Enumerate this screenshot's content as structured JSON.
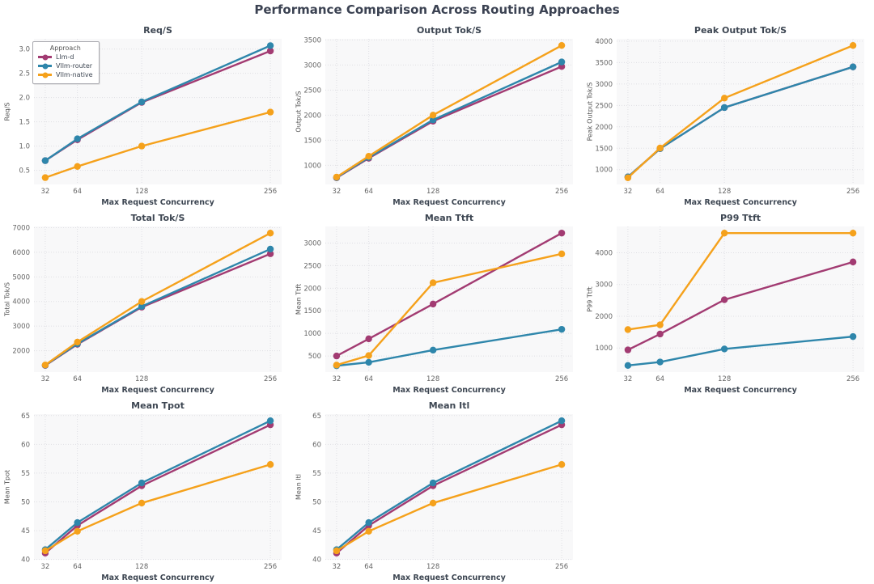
{
  "figure": {
    "title": "Performance Comparison Across Routing Approaches"
  },
  "legend": {
    "title": "Approach",
    "items": [
      {
        "label": "Llm-d",
        "color": "#A23B72"
      },
      {
        "label": "Vllm-router",
        "color": "#2E86AB"
      },
      {
        "label": "Vllm-native",
        "color": "#F5A11B"
      }
    ]
  },
  "colors": {
    "plot_bg": "#f8f8f9",
    "grid": "#dfdfe4",
    "tick_text": "#666666",
    "title_text": "#3d4652"
  },
  "chart_data": [
    {
      "type": "line",
      "title": "Req/S",
      "xlabel": "Max Request Concurrency",
      "ylabel": "Req/S",
      "x": [
        32,
        64,
        128,
        256
      ],
      "x_tick_labels": [
        "32",
        "64",
        "128",
        "256"
      ],
      "y_ticks": [
        0.5,
        1.0,
        1.5,
        2.0,
        2.5,
        3.0
      ],
      "y_tick_labels": [
        "0.5",
        "1.0",
        "1.5",
        "2.0",
        "2.5",
        "3.0"
      ],
      "ylim": [
        0.21,
        3.21
      ],
      "series": [
        {
          "name": "Llm-d",
          "color": "#A23B72",
          "values": [
            0.7,
            1.13,
            1.9,
            2.96
          ]
        },
        {
          "name": "Vllm-router",
          "color": "#2E86AB",
          "values": [
            0.7,
            1.15,
            1.91,
            3.07
          ]
        },
        {
          "name": "Vllm-native",
          "color": "#F5A11B",
          "values": [
            0.35,
            0.58,
            1.0,
            1.7
          ]
        }
      ]
    },
    {
      "type": "line",
      "title": "Output Tok/S",
      "xlabel": "Max Request Concurrency",
      "ylabel": "Output Tok/S",
      "x": [
        32,
        64,
        128,
        256
      ],
      "x_tick_labels": [
        "32",
        "64",
        "128",
        "256"
      ],
      "y_ticks": [
        1000,
        1500,
        2000,
        2500,
        3000,
        3500
      ],
      "y_tick_labels": [
        "1000",
        "1500",
        "2000",
        "2500",
        "3000",
        "3500"
      ],
      "ylim": [
        618,
        3522
      ],
      "series": [
        {
          "name": "Llm-d",
          "color": "#A23B72",
          "values": [
            750,
            1140,
            1880,
            2970
          ]
        },
        {
          "name": "Vllm-router",
          "color": "#2E86AB",
          "values": [
            755,
            1155,
            1905,
            3060
          ]
        },
        {
          "name": "Vllm-native",
          "color": "#F5A11B",
          "values": [
            765,
            1180,
            2000,
            3390
          ]
        }
      ]
    },
    {
      "type": "line",
      "title": "Peak Output Tok/S",
      "xlabel": "Max Request Concurrency",
      "ylabel": "Peak Output Tok/S",
      "x": [
        32,
        64,
        128,
        256
      ],
      "x_tick_labels": [
        "32",
        "64",
        "128",
        "256"
      ],
      "y_ticks": [
        1000,
        1500,
        2000,
        2500,
        3000,
        3500,
        4000
      ],
      "y_tick_labels": [
        "1000",
        "1500",
        "2000",
        "2500",
        "3000",
        "3500",
        "4000"
      ],
      "ylim": [
        655,
        4055
      ],
      "series": [
        {
          "name": "Llm-d",
          "color": "#A23B72",
          "values": [
            830,
            1490,
            2450,
            3400
          ]
        },
        {
          "name": "Vllm-router",
          "color": "#2E86AB",
          "values": [
            830,
            1490,
            2450,
            3400
          ]
        },
        {
          "name": "Vllm-native",
          "color": "#F5A11B",
          "values": [
            810,
            1505,
            2670,
            3900
          ]
        }
      ]
    },
    {
      "type": "line",
      "title": "Total Tok/S",
      "xlabel": "Max Request Concurrency",
      "ylabel": "Total Tok/S",
      "x": [
        32,
        64,
        128,
        256
      ],
      "x_tick_labels": [
        "32",
        "64",
        "128",
        "256"
      ],
      "y_ticks": [
        2000,
        3000,
        4000,
        5000,
        6000,
        7000
      ],
      "y_tick_labels": [
        "2000",
        "3000",
        "4000",
        "5000",
        "6000",
        "7000"
      ],
      "ylim": [
        1131,
        7049
      ],
      "series": [
        {
          "name": "Llm-d",
          "color": "#A23B72",
          "values": [
            1400,
            2260,
            3770,
            5940
          ]
        },
        {
          "name": "Vllm-router",
          "color": "#2E86AB",
          "values": [
            1410,
            2280,
            3800,
            6130
          ]
        },
        {
          "name": "Vllm-native",
          "color": "#F5A11B",
          "values": [
            1420,
            2350,
            4000,
            6780
          ]
        }
      ]
    },
    {
      "type": "line",
      "title": "Mean Ttft",
      "xlabel": "Max Request Concurrency",
      "ylabel": "Mean Ttft",
      "x": [
        32,
        64,
        128,
        256
      ],
      "x_tick_labels": [
        "32",
        "64",
        "128",
        "256"
      ],
      "y_ticks": [
        500,
        1000,
        1500,
        2000,
        2500,
        3000
      ],
      "y_tick_labels": [
        "500",
        "1000",
        "1500",
        "2000",
        "2500",
        "3000"
      ],
      "ylim": [
        144,
        3366
      ],
      "series": [
        {
          "name": "Llm-d",
          "color": "#A23B72",
          "values": [
            500,
            880,
            1650,
            3220
          ]
        },
        {
          "name": "Vllm-router",
          "color": "#2E86AB",
          "values": [
            285,
            360,
            630,
            1090
          ]
        },
        {
          "name": "Vllm-native",
          "color": "#F5A11B",
          "values": [
            300,
            510,
            2120,
            2760
          ]
        }
      ]
    },
    {
      "type": "line",
      "title": "P99 Ttft",
      "xlabel": "Max Request Concurrency",
      "ylabel": "P99 Ttft",
      "x": [
        32,
        64,
        128,
        256
      ],
      "x_tick_labels": [
        "32",
        "64",
        "128",
        "256"
      ],
      "y_ticks": [
        1000,
        2000,
        3000,
        4000
      ],
      "y_tick_labels": [
        "1000",
        "2000",
        "3000",
        "4000"
      ],
      "ylim": [
        242,
        4828
      ],
      "series": [
        {
          "name": "Llm-d",
          "color": "#A23B72",
          "values": [
            940,
            1440,
            2520,
            3710
          ]
        },
        {
          "name": "Vllm-router",
          "color": "#2E86AB",
          "values": [
            450,
            560,
            970,
            1360
          ]
        },
        {
          "name": "Vllm-native",
          "color": "#F5A11B",
          "values": [
            1580,
            1730,
            4620,
            4620
          ]
        }
      ]
    },
    {
      "type": "line",
      "title": "Mean Tpot",
      "xlabel": "Max Request Concurrency",
      "ylabel": "Mean Tpot",
      "x": [
        32,
        64,
        128,
        256
      ],
      "x_tick_labels": [
        "32",
        "64",
        "128",
        "256"
      ],
      "y_ticks": [
        40,
        45,
        50,
        55,
        60,
        65
      ],
      "y_tick_labels": [
        "40",
        "45",
        "50",
        "55",
        "60",
        "65"
      ],
      "ylim": [
        39.95,
        65.25
      ],
      "series": [
        {
          "name": "Llm-d",
          "color": "#A23B72",
          "values": [
            41.1,
            45.9,
            52.8,
            63.4
          ]
        },
        {
          "name": "Vllm-router",
          "color": "#2E86AB",
          "values": [
            41.7,
            46.4,
            53.3,
            64.1
          ]
        },
        {
          "name": "Vllm-native",
          "color": "#F5A11B",
          "values": [
            41.5,
            44.9,
            49.8,
            56.5
          ]
        }
      ]
    },
    {
      "type": "line",
      "title": "Mean Itl",
      "xlabel": "Max Request Concurrency",
      "ylabel": "Mean Itl",
      "x": [
        32,
        64,
        128,
        256
      ],
      "x_tick_labels": [
        "32",
        "64",
        "128",
        "256"
      ],
      "y_ticks": [
        40,
        45,
        50,
        55,
        60,
        65
      ],
      "y_tick_labels": [
        "40",
        "45",
        "50",
        "55",
        "60",
        "65"
      ],
      "ylim": [
        39.95,
        65.25
      ],
      "series": [
        {
          "name": "Llm-d",
          "color": "#A23B72",
          "values": [
            41.1,
            45.9,
            52.8,
            63.4
          ]
        },
        {
          "name": "Vllm-router",
          "color": "#2E86AB",
          "values": [
            41.7,
            46.4,
            53.3,
            64.1
          ]
        },
        {
          "name": "Vllm-native",
          "color": "#F5A11B",
          "values": [
            41.5,
            44.9,
            49.8,
            56.5
          ]
        }
      ]
    }
  ]
}
